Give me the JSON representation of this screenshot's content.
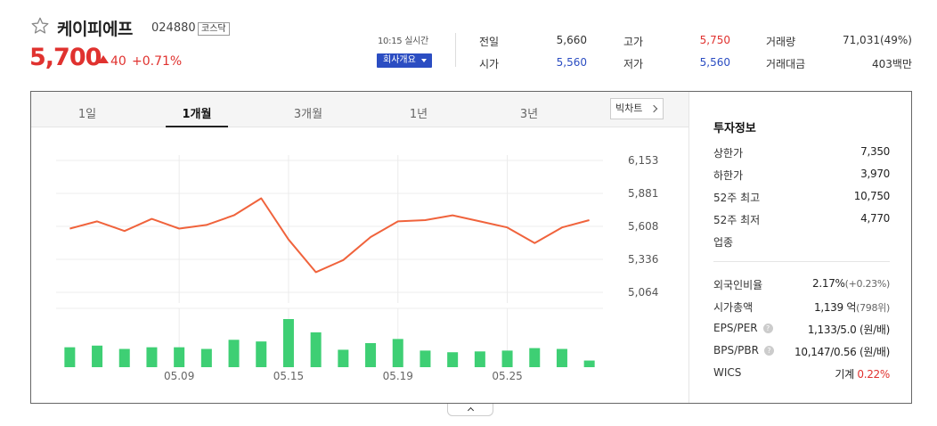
{
  "stock": {
    "name": "케이피에프",
    "code": "024880",
    "market": "코스닥",
    "price": "5,700",
    "change": "40",
    "change_rate": "+0.71%",
    "realtime_label": "10:15 실시간",
    "company_button": "회사개요"
  },
  "quote": {
    "prev_close_label": "전일",
    "prev_close": "5,660",
    "high_label": "고가",
    "high": "5,750",
    "volume_label": "거래량",
    "volume": "71,031(49%)",
    "open_label": "시가",
    "open": "5,560",
    "low_label": "저가",
    "low": "5,560",
    "amount_label": "거래대금",
    "amount": "403백만"
  },
  "tabs": [
    "1일",
    "1개월",
    "3개월",
    "1년",
    "3년"
  ],
  "active_tab": "1개월",
  "big_chart_label": "빅차트",
  "colors": {
    "up": "#e0322f",
    "down": "#2b4dc2",
    "line": "#f0633c",
    "volume": "#3ecf74"
  },
  "chart_data": {
    "type": "line",
    "y_ticks": [
      "6,153",
      "5,881",
      "5,608",
      "5,336",
      "5,064"
    ],
    "ylim": [
      5064,
      6153
    ],
    "x_tick_labels": [
      "05.09",
      "05.15",
      "05.19",
      "05.25"
    ],
    "price_series": [
      5590,
      5650,
      5570,
      5670,
      5590,
      5620,
      5700,
      5840,
      5500,
      5230,
      5330,
      5520,
      5650,
      5660,
      5700,
      5650,
      5600,
      5470,
      5600,
      5660
    ],
    "volume_series": [
      24,
      26,
      22,
      24,
      24,
      22,
      33,
      31,
      58,
      42,
      21,
      29,
      34,
      20,
      18,
      19,
      20,
      23,
      22,
      8
    ],
    "grid": true
  },
  "investment_info": {
    "title": "투자정보",
    "upper_limit_label": "상한가",
    "upper_limit": "7,350",
    "lower_limit_label": "하한가",
    "lower_limit": "3,970",
    "w52_high_label": "52주 최고",
    "w52_high": "10,750",
    "w52_low_label": "52주 최저",
    "w52_low": "4,770",
    "sector_label": "업종",
    "foreign_label": "외국인비율",
    "foreign": "2.17%",
    "foreign_change": "(+0.23%)",
    "mcap_label": "시가총액",
    "mcap": "1,139 억",
    "mcap_rank": "(798위)",
    "eps_label": "EPS/PER",
    "eps": "1,133/5.0 (원/배)",
    "bps_label": "BPS/PBR",
    "bps": "10,147/0.56 (원/배)",
    "wics_label": "WICS",
    "wics": "기계",
    "wics_rate": "0.22%"
  }
}
